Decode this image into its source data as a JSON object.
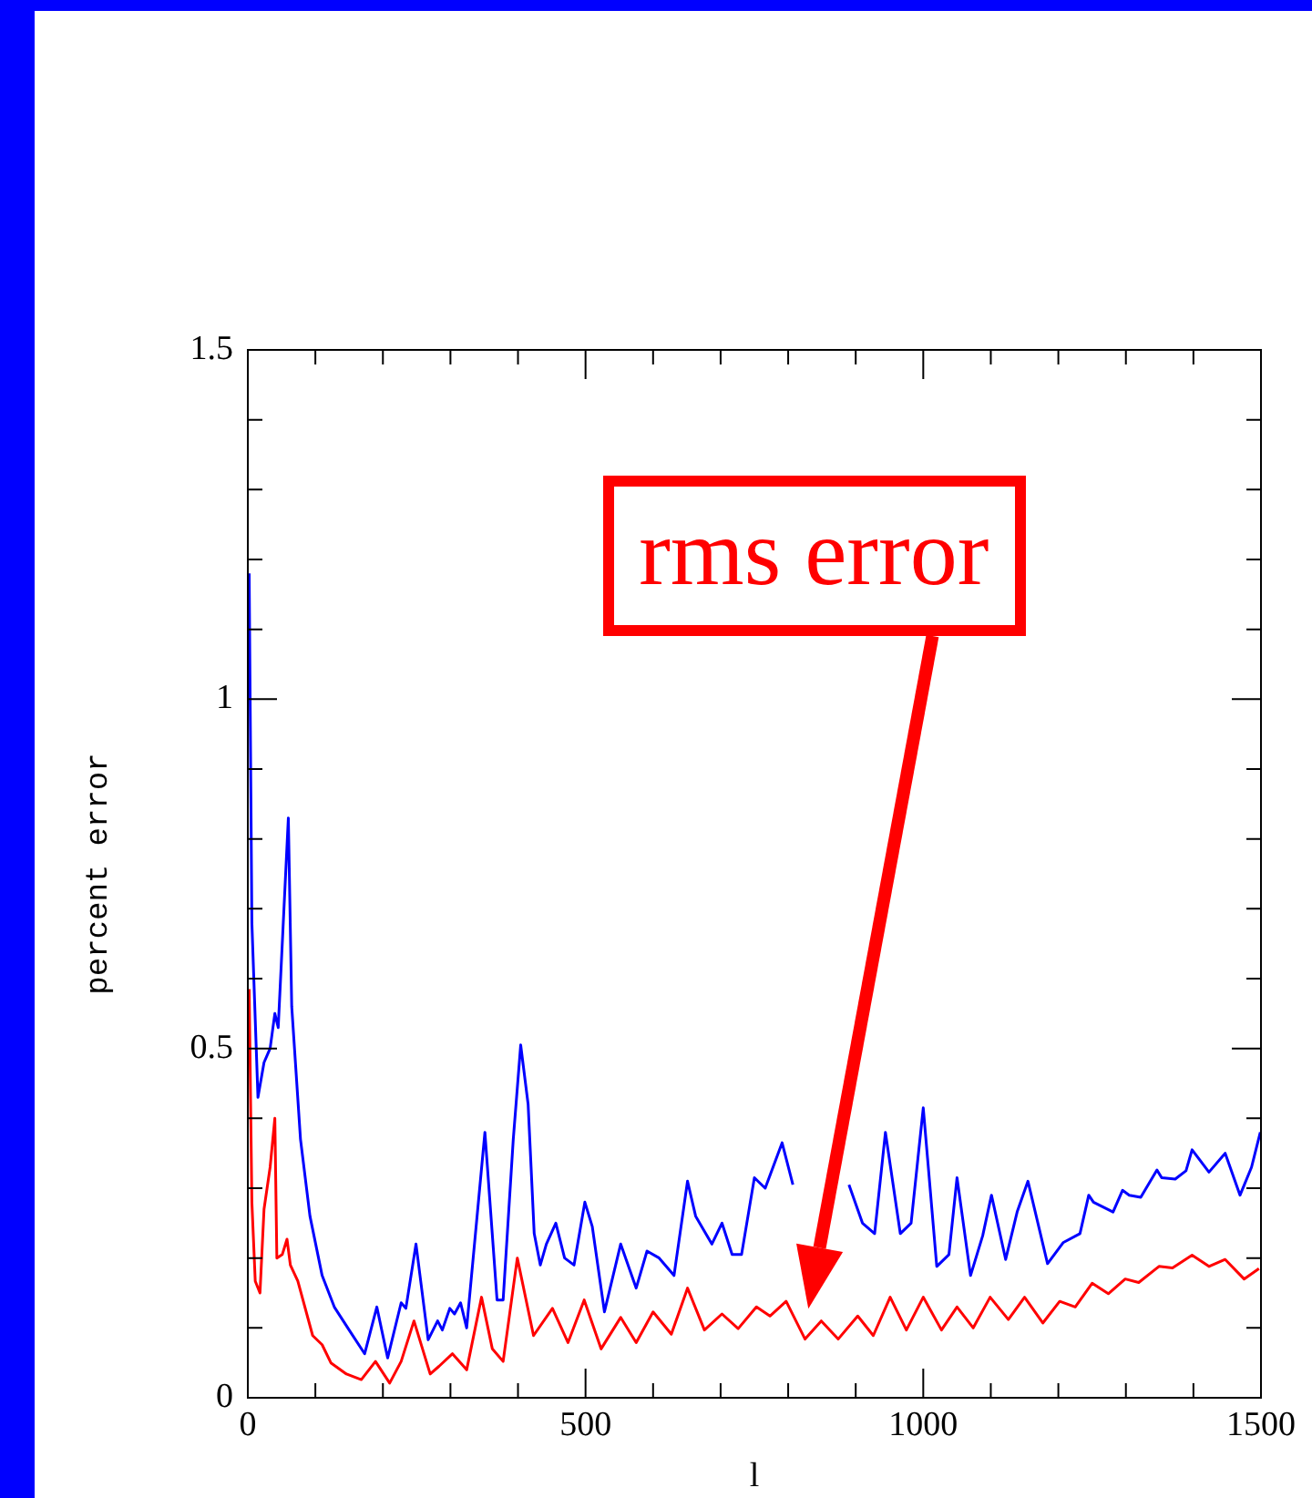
{
  "chart_data": {
    "type": "line",
    "xlabel": "l",
    "ylabel": "percent error",
    "xlim": [
      0,
      1500
    ],
    "ylim": [
      0,
      1.5
    ],
    "xticks": [
      0,
      {
        "value": 100,
        "label": null
      },
      {
        "value": 200,
        "label": null
      },
      {
        "value": 300,
        "label": null
      },
      {
        "value": 400,
        "label": null
      },
      500,
      {
        "value": 600,
        "label": null
      },
      {
        "value": 700,
        "label": null
      },
      {
        "value": 800,
        "label": null
      },
      {
        "value": 900,
        "label": null
      },
      1000,
      {
        "value": 1100,
        "label": null
      },
      {
        "value": 1200,
        "label": null
      },
      {
        "value": 1300,
        "label": null
      },
      {
        "value": 1400,
        "label": null
      },
      1500
    ],
    "yticks": [
      0,
      {
        "value": 0.1,
        "label": null
      },
      {
        "value": 0.2,
        "label": null
      },
      {
        "value": 0.3,
        "label": null
      },
      {
        "value": 0.4,
        "label": null
      },
      0.5,
      {
        "value": 0.6,
        "label": null
      },
      {
        "value": 0.7,
        "label": null
      },
      {
        "value": 0.8,
        "label": null
      },
      {
        "value": 0.9,
        "label": null
      },
      1,
      {
        "value": 1.1,
        "label": null
      },
      {
        "value": 1.2,
        "label": null
      },
      {
        "value": 1.3,
        "label": null
      },
      {
        "value": 1.4,
        "label": null
      },
      1.5
    ],
    "legend": false,
    "marker": "none",
    "line_style": "solid",
    "annotations": [
      "rms error"
    ],
    "series": [
      {
        "color": "#0000ff",
        "x": [
          2,
          6,
          15,
          24,
          33,
          40,
          45,
          60,
          65,
          78,
          92,
          110,
          128,
          150,
          173,
          191,
          207,
          227,
          234,
          249,
          267,
          281,
          288,
          299,
          306,
          315,
          324,
          351,
          369,
          378,
          393,
          404,
          415,
          424,
          433,
          442,
          456,
          469,
          483,
          499,
          510,
          528,
          552,
          575,
          591,
          609,
          631,
          651,
          663,
          687,
          702,
          717,
          731,
          750,
          766,
          791,
          807,
          829,
          845,
          888,
          890,
          910,
          928,
          944,
          966,
          982,
          1000,
          1020,
          1038,
          1050,
          1070,
          1088,
          1101,
          1122,
          1139,
          1155,
          1184,
          1207,
          1232,
          1245,
          1252,
          1281,
          1295,
          1305,
          1322,
          1346,
          1353,
          1373,
          1389,
          1398,
          1423,
          1447,
          1469,
          1486,
          1499
        ],
        "values": [
          1.18,
          0.68,
          0.43,
          0.48,
          0.5,
          0.55,
          0.53,
          0.83,
          0.56,
          0.37,
          0.26,
          0.175,
          0.13,
          0.097,
          0.063,
          0.13,
          0.057,
          0.136,
          0.128,
          0.22,
          0.083,
          0.11,
          0.097,
          0.128,
          0.12,
          0.136,
          0.1,
          0.38,
          0.14,
          0.14,
          0.37,
          0.505,
          0.42,
          0.235,
          0.19,
          0.22,
          0.25,
          0.2,
          0.19,
          0.28,
          0.245,
          0.123,
          0.22,
          0.157,
          0.21,
          0.2,
          0.175,
          0.31,
          0.26,
          0.22,
          0.25,
          0.205,
          0.205,
          0.315,
          0.3,
          0.365,
          0.305,
          null,
          null,
          null,
          0.305,
          0.25,
          0.235,
          0.38,
          0.235,
          0.25,
          0.415,
          0.188,
          0.205,
          0.315,
          0.175,
          0.232,
          0.29,
          0.198,
          0.266,
          0.31,
          0.192,
          0.222,
          0.235,
          0.29,
          0.28,
          0.266,
          0.297,
          0.29,
          0.287,
          0.326,
          0.315,
          0.313,
          0.325,
          0.355,
          0.323,
          0.35,
          0.29,
          0.33,
          0.38
        ]
      },
      {
        "color": "#ff0000",
        "x": [
          2,
          6,
          11,
          18,
          24,
          33,
          40,
          43,
          51,
          58,
          63,
          74,
          96,
          110,
          123,
          146,
          168,
          189,
          210,
          227,
          246,
          270,
          283,
          303,
          324,
          346,
          362,
          378,
          399,
          423,
          451,
          474,
          498,
          523,
          552,
          575,
          600,
          627,
          651,
          676,
          702,
          726,
          753,
          773,
          797,
          825,
          849,
          874,
          903,
          926,
          951,
          975,
          1000,
          1027,
          1050,
          1074,
          1099,
          1126,
          1150,
          1177,
          1202,
          1225,
          1250,
          1274,
          1299,
          1319,
          1349,
          1369,
          1398,
          1423,
          1447,
          1475,
          1497
        ],
        "values": [
          0.585,
          0.28,
          0.167,
          0.15,
          0.27,
          0.33,
          0.4,
          0.2,
          0.205,
          0.227,
          0.19,
          0.167,
          0.089,
          0.076,
          0.05,
          0.034,
          0.026,
          0.052,
          0.021,
          0.052,
          0.11,
          0.034,
          0.045,
          0.063,
          0.04,
          0.144,
          0.07,
          0.052,
          0.2,
          0.089,
          0.128,
          0.079,
          0.14,
          0.07,
          0.115,
          0.079,
          0.123,
          0.091,
          0.157,
          0.097,
          0.12,
          0.099,
          0.13,
          0.117,
          0.138,
          0.084,
          0.11,
          0.084,
          0.117,
          0.089,
          0.144,
          0.097,
          0.144,
          0.097,
          0.13,
          0.1,
          0.144,
          0.112,
          0.144,
          0.107,
          0.138,
          0.13,
          0.164,
          0.149,
          0.17,
          0.165,
          0.188,
          0.186,
          0.204,
          0.188,
          0.198,
          0.17,
          0.185
        ]
      }
    ]
  }
}
